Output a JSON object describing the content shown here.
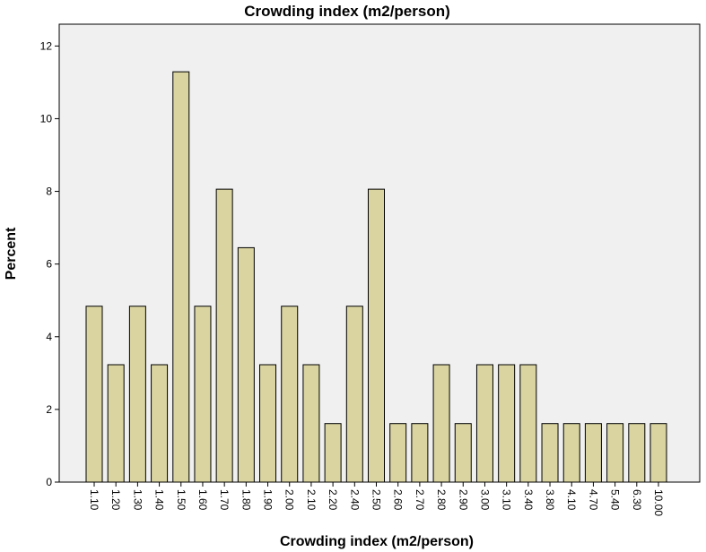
{
  "chart_data": {
    "type": "bar",
    "title": "Crowding index (m2/person)",
    "xlabel": "Crowding index (m2/person)",
    "ylabel": "Percent",
    "ylim": [
      0,
      12.6
    ],
    "yticks": [
      0,
      2,
      4,
      6,
      8,
      10,
      12
    ],
    "grid": false,
    "categories": [
      "1.10",
      "1.20",
      "1.30",
      "1.40",
      "1.50",
      "1.60",
      "1.70",
      "1.80",
      "1.90",
      "2.00",
      "2.10",
      "2.20",
      "2.40",
      "2.50",
      "2.60",
      "2.70",
      "2.80",
      "2.90",
      "3.00",
      "3.10",
      "3.40",
      "3.80",
      "4.10",
      "4.70",
      "5.40",
      "6.30",
      "10.00"
    ],
    "values": [
      4.84,
      3.23,
      4.84,
      3.23,
      11.29,
      4.84,
      8.06,
      6.45,
      3.23,
      4.84,
      3.23,
      1.61,
      4.84,
      8.06,
      1.61,
      1.61,
      3.23,
      1.61,
      3.23,
      3.23,
      3.23,
      1.61,
      1.61,
      1.61,
      1.61,
      1.61,
      1.61
    ],
    "colors": {
      "bar_fill": "#d9d4a0",
      "bar_stroke": "#000000",
      "plot_bg": "#f0f0f0"
    }
  }
}
